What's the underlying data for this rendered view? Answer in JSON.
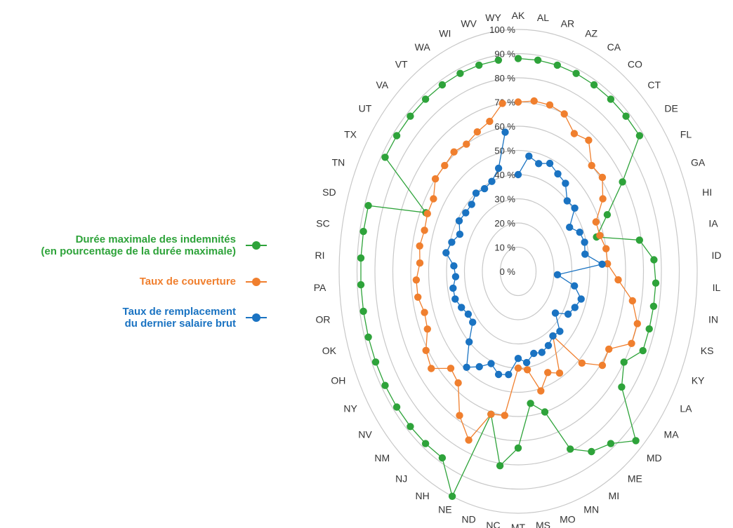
{
  "colors": {
    "duree": "#2ea33a",
    "couverture": "#f07f2e",
    "remplacement": "#1a73c2",
    "grid": "#c8c8c8",
    "text": "#333333"
  },
  "legend": [
    {
      "label": "Durée maximale des indemnités\n(en pourcentage de la durée maximale)",
      "color": "#2ea33a"
    },
    {
      "label": "Taux de couverture",
      "color": "#f07f2e"
    },
    {
      "label": "Taux de remplacement\ndu dernier salaire brut",
      "color": "#1a73c2"
    }
  ],
  "chart_data": {
    "type": "radar",
    "rlim": [
      0,
      100
    ],
    "rticks": [
      "0 %",
      "10 %",
      "20 %",
      "30 %",
      "40 %",
      "50 %",
      "60 %",
      "70 %",
      "80 %",
      "90 %",
      "100 %"
    ],
    "categories": [
      "AK",
      "AL",
      "AR",
      "AZ",
      "CA",
      "CO",
      "CT",
      "DE",
      "FL",
      "GA",
      "HI",
      "IA",
      "ID",
      "IL",
      "IN",
      "KS",
      "KY",
      "LA",
      "MA",
      "MD",
      "ME",
      "MI",
      "MN",
      "MO",
      "MS",
      "MT",
      "NC",
      "ND",
      "NE",
      "NH",
      "NJ",
      "NM",
      "NV",
      "NY",
      "OH",
      "OK",
      "OR",
      "PA",
      "RI",
      "SC",
      "SD",
      "TN",
      "TX",
      "UT",
      "VA",
      "VT",
      "WA",
      "WI",
      "WV",
      "WY"
    ],
    "series": [
      {
        "name": "Durée maximale des indemnités (en pourcentage de la durée maximale)",
        "color": "#2ea33a",
        "values": [
          88,
          88,
          88,
          88,
          88,
          88,
          88,
          88,
          69,
          55,
          46,
          69,
          76,
          77,
          77,
          77,
          77,
          70,
          75,
          96,
          88,
          85,
          79,
          60,
          55,
          73,
          81,
          61,
          100,
          88,
          88,
          88,
          88,
          88,
          88,
          88,
          88,
          88,
          88,
          88,
          88,
          57,
          88,
          88,
          88,
          88,
          88,
          88,
          88,
          88
        ]
      },
      {
        "name": "Taux de couverture",
        "color": "#f07f2e",
        "values": [
          70,
          71,
          71,
          70,
          65,
          67,
          60,
          61,
          56,
          48,
          48,
          50,
          50,
          56,
          65,
          70,
          70,
          60,
          61,
          52,
          33,
          48,
          45,
          51,
          41,
          40,
          60,
          61,
          75,
          68,
          57,
          55,
          63,
          61,
          56,
          55,
          57,
          57,
          55,
          56,
          55,
          56,
          56,
          60,
          60,
          61,
          60,
          62,
          64,
          70
        ]
      },
      {
        "name": "Taux de remplacement du dernier salaire brut",
        "color": "#1a73c2",
        "values": [
          40,
          48,
          46,
          48,
          46,
          45,
          40,
          41,
          34,
          38,
          39,
          38,
          47,
          22,
          32,
          37,
          35,
          33,
          27,
          34,
          33,
          35,
          36,
          35,
          38,
          36,
          43,
          44,
          41,
          45,
          49,
          40,
          33,
          33,
          35,
          37,
          37,
          35,
          36,
          41,
          39,
          36,
          39,
          38,
          38,
          40,
          39,
          40,
          44,
          58
        ]
      }
    ]
  }
}
